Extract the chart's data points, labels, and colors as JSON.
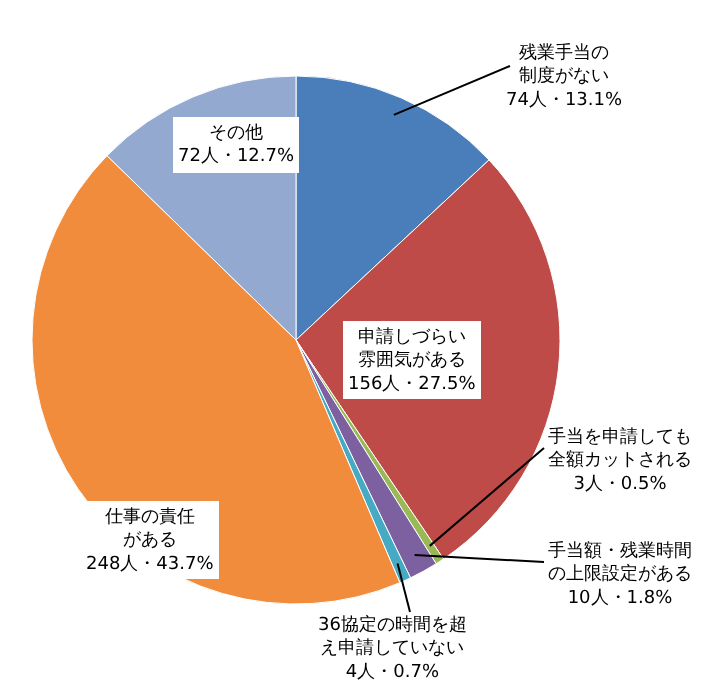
{
  "chart_data": {
    "type": "pie",
    "categories": [
      "残業手当の制度がない",
      "申請しづらい雰囲気がある",
      "手当を申請しても全額カットされる",
      "手当額・残業時間の上限設定がある",
      "36協定の時間を超え申請していない",
      "仕事の責任がある",
      "その他"
    ],
    "values": [
      74,
      156,
      3,
      10,
      4,
      248,
      72
    ],
    "value_labels": [
      "74人・13.1%",
      "156人・27.5%",
      "3人・0.5%",
      "10人・1.8%",
      "4人・0.7%",
      "248人・43.7%",
      "72人・12.7%"
    ],
    "colors": [
      "#4a7ebb",
      "#be4b48",
      "#98b954",
      "#7d60a0",
      "#46aac5",
      "#f08c3c",
      "#93a9cf"
    ],
    "legend": false
  }
}
